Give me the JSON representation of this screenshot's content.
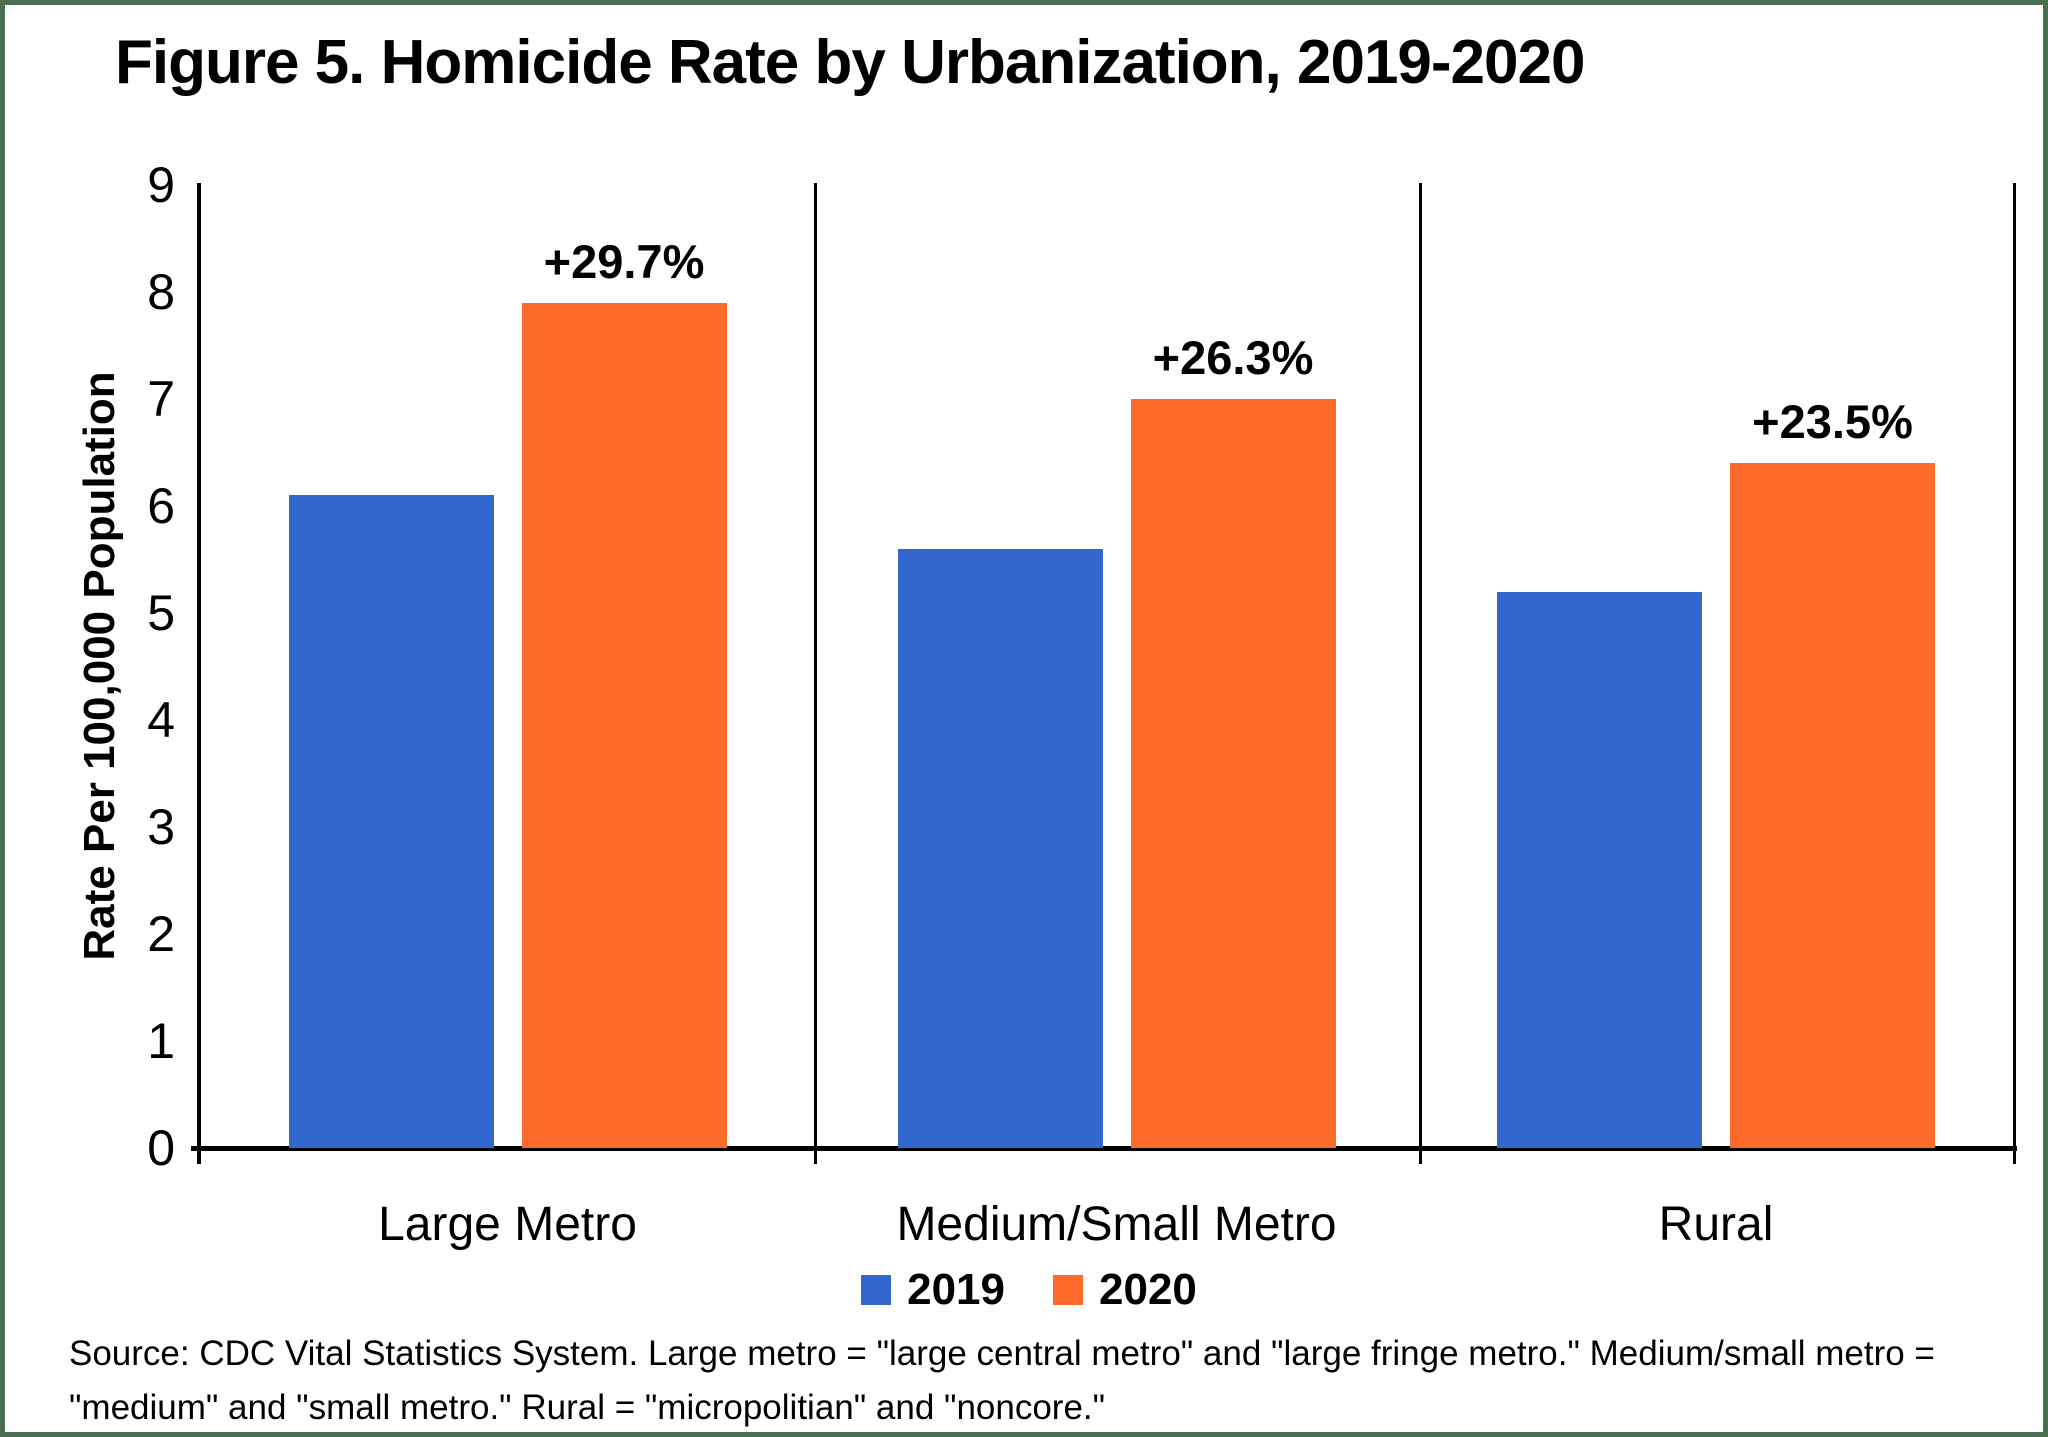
{
  "title": "Figure 5. Homicide Rate by Urbanization, 2019-2020",
  "chart_data": {
    "type": "bar",
    "categories": [
      "Large Metro",
      "Medium/Small Metro",
      "Rural"
    ],
    "series": [
      {
        "name": "2019",
        "color": "#3267CD",
        "values": [
          6.1,
          5.6,
          5.2
        ]
      },
      {
        "name": "2020",
        "color": "#FD6B2B",
        "values": [
          7.9,
          7.0,
          6.4
        ]
      }
    ],
    "bar_labels": [
      "+29.7%",
      "+26.3%",
      "+23.5%"
    ],
    "title": "Figure 5. Homicide Rate by Urbanization, 2019-2020",
    "xlabel": "",
    "ylabel": "Rate Per 100,000 Population",
    "ylim": [
      0,
      9
    ],
    "ytick_step": 1,
    "grid": false,
    "legend_position": "bottom"
  },
  "legend": {
    "items": [
      {
        "label": "2019",
        "color": "#3267CD"
      },
      {
        "label": "2020",
        "color": "#FD6B2B"
      }
    ]
  },
  "source_note": "Source: CDC Vital Statistics System. Large metro = \"large central metro\" and \"large fringe metro.\" Medium/small metro = \"medium\" and \"small metro.\" Rural = \"micropolitian\" and \"noncore.\"",
  "colors": {
    "frame_border": "#4A6E50",
    "axis": "#000000",
    "bar_2019": "#3267CD",
    "bar_2020": "#FD6B2B"
  }
}
